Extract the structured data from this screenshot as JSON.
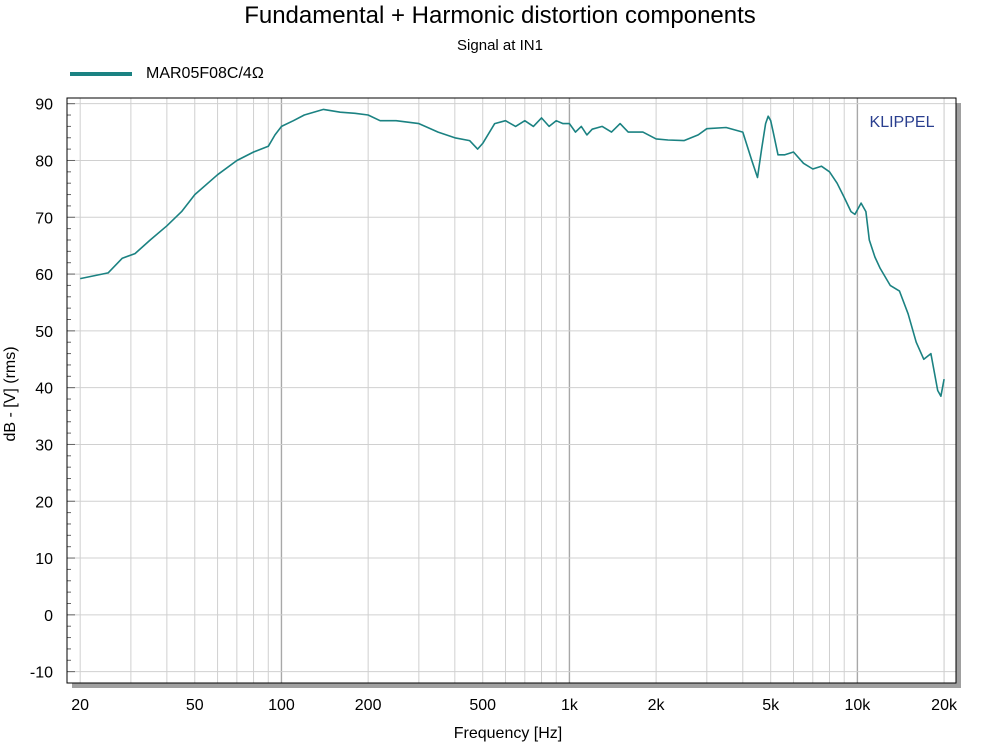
{
  "title": "Fundamental + Harmonic distortion components",
  "subtitle": "Signal at IN1",
  "watermark": "KLIPPEL",
  "colors": {
    "series": "#1b8282",
    "grid": "#d0d0d0",
    "grid_major": "#a8a8a8",
    "watermark": "#2a3f8f",
    "shadow": "#a0a0a0"
  },
  "chart_data": {
    "type": "line",
    "title": "Fundamental + Harmonic distortion components",
    "subtitle": "Signal at IN1",
    "xlabel": "Frequency [Hz]",
    "ylabel": "dB - [V]  (rms)",
    "xscale": "log",
    "xlim": [
      18,
      22000
    ],
    "ylim": [
      -12,
      91
    ],
    "xticks": [
      {
        "value": 20,
        "label": "20"
      },
      {
        "value": 50,
        "label": "50"
      },
      {
        "value": 100,
        "label": "100"
      },
      {
        "value": 200,
        "label": "200"
      },
      {
        "value": 500,
        "label": "500"
      },
      {
        "value": 1000,
        "label": "1k"
      },
      {
        "value": 2000,
        "label": "2k"
      },
      {
        "value": 5000,
        "label": "5k"
      },
      {
        "value": 10000,
        "label": "10k"
      },
      {
        "value": 20000,
        "label": "20k"
      }
    ],
    "yticks": [
      90,
      80,
      70,
      60,
      50,
      40,
      30,
      20,
      10,
      0,
      -10
    ],
    "grid": true,
    "legend_position": "top-left",
    "series": [
      {
        "name": "MAR05F08C/4Ω",
        "x": [
          20,
          25,
          28,
          31,
          35,
          40,
          45,
          50,
          60,
          70,
          80,
          90,
          95,
          100,
          110,
          120,
          140,
          160,
          180,
          200,
          220,
          250,
          300,
          350,
          400,
          450,
          480,
          500,
          550,
          600,
          650,
          700,
          750,
          800,
          850,
          900,
          950,
          1000,
          1050,
          1100,
          1150,
          1200,
          1300,
          1400,
          1500,
          1600,
          1800,
          2000,
          2200,
          2500,
          2800,
          3000,
          3500,
          4000,
          4300,
          4500,
          4650,
          4800,
          4900,
          5000,
          5100,
          5300,
          5600,
          6000,
          6500,
          7000,
          7500,
          8000,
          8500,
          9000,
          9500,
          9800,
          10300,
          10700,
          11000,
          11500,
          12000,
          13000,
          14000,
          15000,
          16000,
          17000,
          18000,
          19000,
          19500,
          20000
        ],
        "y": [
          59.2,
          60.2,
          62.8,
          63.6,
          66.0,
          68.5,
          71.0,
          74.0,
          77.5,
          80.0,
          81.5,
          82.5,
          84.5,
          86.0,
          87.0,
          88.0,
          89.0,
          88.5,
          88.3,
          88.0,
          87.0,
          87.0,
          86.5,
          85.0,
          84.0,
          83.5,
          82.0,
          83.0,
          86.5,
          87.0,
          86.0,
          87.0,
          86.0,
          87.5,
          86.0,
          87.0,
          86.5,
          86.5,
          85.0,
          86.0,
          84.5,
          85.5,
          86.0,
          85.0,
          86.5,
          85.0,
          85.0,
          83.8,
          83.6,
          83.5,
          84.5,
          85.6,
          85.8,
          85.0,
          80.0,
          77.0,
          82.0,
          86.5,
          87.8,
          87.0,
          85.0,
          81.0,
          81.0,
          81.5,
          79.5,
          78.5,
          79.0,
          78.0,
          76.0,
          73.5,
          71.0,
          70.5,
          72.5,
          71.0,
          66.0,
          63.0,
          61.0,
          58.0,
          57.0,
          53.0,
          48.0,
          45.0,
          46.0,
          39.5,
          38.5,
          41.5
        ]
      }
    ]
  }
}
